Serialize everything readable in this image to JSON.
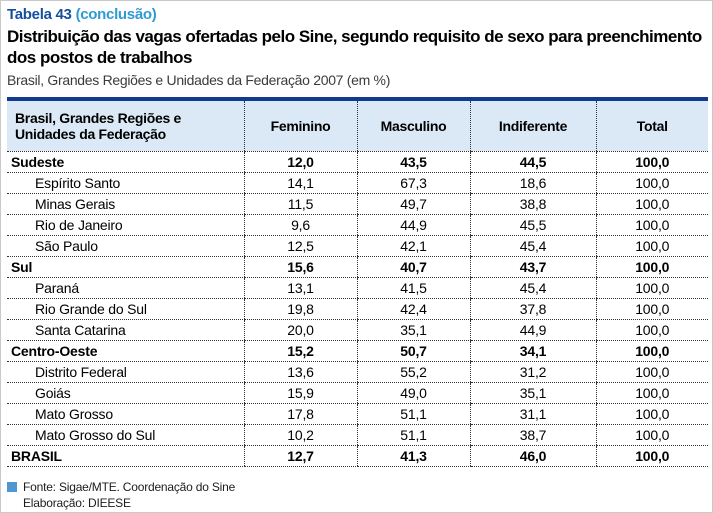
{
  "heading": {
    "table_number": "Tabela 43",
    "table_suffix": "(conclusão)",
    "title": "Distribuição das vagas ofertadas pelo Sine, segundo requisito de sexo para preenchimento dos postos de trabalhos",
    "subtitle": "Brasil, Grandes Regiões e Unidades da Federação 2007 (em %)"
  },
  "colors": {
    "table_number_blue": "#164fa0",
    "suffix_light_blue": "#2e9ad5",
    "header_row_bg": "#dbe9f6",
    "table_top_border": "#123a8f",
    "source_square_blue": "#4f97d0"
  },
  "table": {
    "columns": [
      "Brasil, Grandes Regiões e Unidades da Federação",
      "Feminino",
      "Masculino",
      "Indiferente",
      "Total"
    ],
    "column_keys": [
      "label",
      "feminino",
      "masculino",
      "indiferente",
      "total"
    ],
    "rows": [
      {
        "type": "region",
        "label": "Sudeste",
        "feminino": "12,0",
        "masculino": "43,5",
        "indiferente": "44,5",
        "total": "100,0"
      },
      {
        "type": "state",
        "label": "Espírito Santo",
        "feminino": "14,1",
        "masculino": "67,3",
        "indiferente": "18,6",
        "total": "100,0"
      },
      {
        "type": "state",
        "label": "Minas Gerais",
        "feminino": "11,5",
        "masculino": "49,7",
        "indiferente": "38,8",
        "total": "100,0"
      },
      {
        "type": "state",
        "label": "Rio de Janeiro",
        "feminino": "9,6",
        "masculino": "44,9",
        "indiferente": "45,5",
        "total": "100,0"
      },
      {
        "type": "state",
        "label": "São Paulo",
        "feminino": "12,5",
        "masculino": "42,1",
        "indiferente": "45,4",
        "total": "100,0"
      },
      {
        "type": "region",
        "label": "Sul",
        "feminino": "15,6",
        "masculino": "40,7",
        "indiferente": "43,7",
        "total": "100,0"
      },
      {
        "type": "state",
        "label": "Paraná",
        "feminino": "13,1",
        "masculino": "41,5",
        "indiferente": "45,4",
        "total": "100,0"
      },
      {
        "type": "state",
        "label": "Rio Grande do Sul",
        "feminino": "19,8",
        "masculino": "42,4",
        "indiferente": "37,8",
        "total": "100,0"
      },
      {
        "type": "state",
        "label": "Santa Catarina",
        "feminino": "20,0",
        "masculino": "35,1",
        "indiferente": "44,9",
        "total": "100,0"
      },
      {
        "type": "region",
        "label": "Centro-Oeste",
        "feminino": "15,2",
        "masculino": "50,7",
        "indiferente": "34,1",
        "total": "100,0"
      },
      {
        "type": "state",
        "label": "Distrito Federal",
        "feminino": "13,6",
        "masculino": "55,2",
        "indiferente": "31,2",
        "total": "100,0"
      },
      {
        "type": "state",
        "label": "Goiás",
        "feminino": "15,9",
        "masculino": "49,0",
        "indiferente": "35,1",
        "total": "100,0"
      },
      {
        "type": "state",
        "label": "Mato Grosso",
        "feminino": "17,8",
        "masculino": "51,1",
        "indiferente": "31,1",
        "total": "100,0"
      },
      {
        "type": "state",
        "label": "Mato Grosso do Sul",
        "feminino": "10,2",
        "masculino": "51,1",
        "indiferente": "38,7",
        "total": "100,0"
      },
      {
        "type": "total",
        "label": "BRASIL",
        "feminino": "12,7",
        "masculino": "41,3",
        "indiferente": "46,0",
        "total": "100,0"
      }
    ]
  },
  "footer": {
    "source": "Fonte: Sigae/MTE. Coordenação do Sine",
    "elaboration": "Elaboração: DIEESE"
  }
}
